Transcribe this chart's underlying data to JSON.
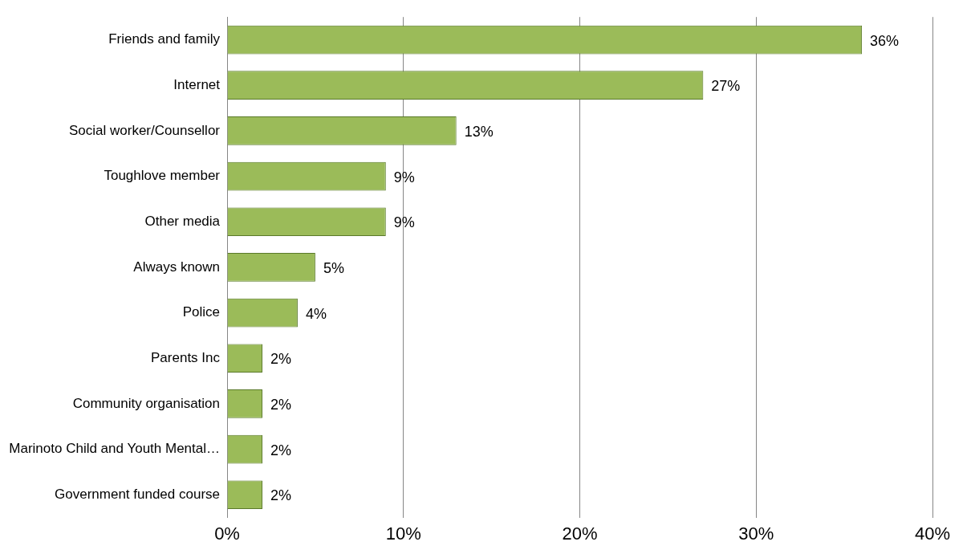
{
  "chart_data": {
    "type": "bar",
    "orientation": "horizontal",
    "categories": [
      "Friends and family",
      "Internet",
      "Social worker/Counsellor",
      "Toughlove member",
      "Other media",
      "Always known",
      "Police",
      "Parents Inc",
      "Community organisation",
      "Marinoto Child and Youth Mental…",
      "Government funded course"
    ],
    "values": [
      36,
      27,
      13,
      9,
      9,
      5,
      4,
      2,
      2,
      2,
      2
    ],
    "value_labels": [
      "36%",
      "27%",
      "13%",
      "9%",
      "9%",
      "5%",
      "4%",
      "2%",
      "2%",
      "2%",
      "2%"
    ],
    "color": "#9bbb59",
    "xlim": [
      0,
      40
    ],
    "xticks": [
      {
        "value": 0,
        "label": "0%"
      },
      {
        "value": 10,
        "label": "10%"
      },
      {
        "value": 20,
        "label": "20%"
      },
      {
        "value": 30,
        "label": "30%"
      },
      {
        "value": 40,
        "label": "40%"
      }
    ],
    "grid": "x",
    "legend": false
  }
}
